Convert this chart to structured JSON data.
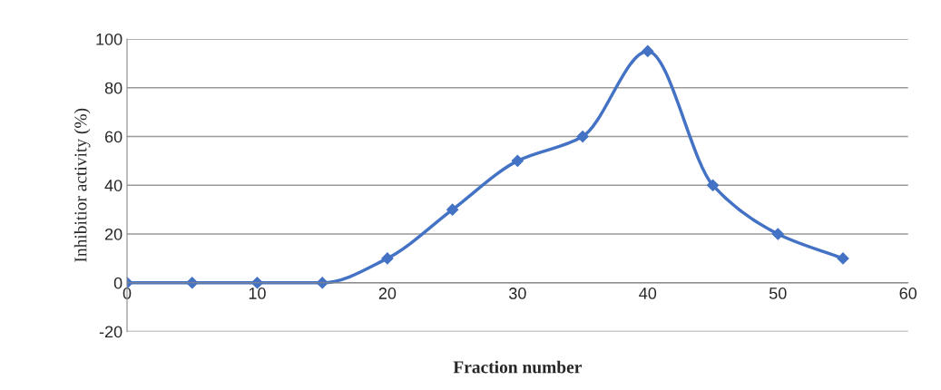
{
  "chart_data": {
    "type": "line",
    "xlabel": "Fraction number",
    "ylabel": "Inhibitior activity (%)",
    "x": [
      0,
      5,
      10,
      15,
      20,
      25,
      30,
      35,
      40,
      45,
      50,
      55
    ],
    "series": [
      {
        "color": "#4472c4",
        "values": [
          0,
          0,
          0,
          0,
          10,
          30,
          50,
          60,
          95,
          40,
          20,
          10
        ]
      }
    ],
    "xlim": [
      0,
      60
    ],
    "xticks": [
      0,
      10,
      20,
      30,
      40,
      50,
      60
    ],
    "ylim": [
      -20,
      100
    ],
    "yticks": [
      -20,
      0,
      20,
      40,
      60,
      80,
      100
    ],
    "grid": "y",
    "marker": "diamond",
    "line_style": "solid",
    "legend": false
  }
}
